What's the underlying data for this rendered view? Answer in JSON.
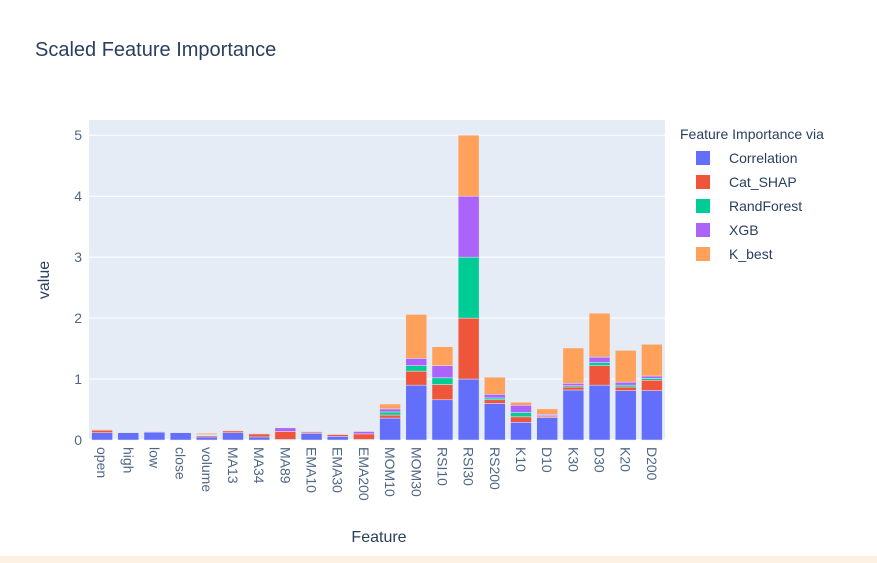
{
  "chart_data": {
    "type": "bar",
    "stacked": true,
    "title": "Scaled Feature Importance",
    "xlabel": "Feature",
    "ylabel": "value",
    "ylim": [
      0,
      5.25
    ],
    "yticks": [
      0,
      1,
      2,
      3,
      4,
      5
    ],
    "grid": true,
    "legend_title": "Feature Importance via",
    "legend_placement": "right",
    "categories": [
      "open",
      "high",
      "low",
      "close",
      "volume",
      "MA13",
      "MA34",
      "MA89",
      "EMA10",
      "EMA30",
      "EMA200",
      "MOM10",
      "MOM30",
      "RSI10",
      "RSI30",
      "RS200",
      "K10",
      "D10",
      "K30",
      "D30",
      "K20",
      "D200"
    ],
    "series": [
      {
        "name": "Correlation",
        "color": "#636efa",
        "values": [
          0.12,
          0.12,
          0.13,
          0.12,
          0.05,
          0.12,
          0.05,
          0.01,
          0.11,
          0.06,
          0.01,
          0.36,
          0.9,
          0.66,
          1.0,
          0.6,
          0.29,
          0.37,
          0.82,
          0.9,
          0.81,
          0.81
        ]
      },
      {
        "name": "Cat_SHAP",
        "color": "#ef553b",
        "values": [
          0.04,
          0.0,
          0.0,
          0.0,
          0.02,
          0.03,
          0.05,
          0.13,
          0.02,
          0.03,
          0.09,
          0.05,
          0.23,
          0.25,
          1.0,
          0.06,
          0.09,
          0.02,
          0.05,
          0.32,
          0.06,
          0.17
        ]
      },
      {
        "name": "RandForest",
        "color": "#00cc96",
        "values": [
          0.01,
          0.0,
          0.0,
          0.0,
          0.01,
          0.0,
          0.0,
          0.0,
          0.0,
          0.0,
          0.0,
          0.05,
          0.09,
          0.11,
          1.0,
          0.03,
          0.07,
          0.01,
          0.02,
          0.05,
          0.03,
          0.03
        ]
      },
      {
        "name": "XGB",
        "color": "#ab63fa",
        "values": [
          0.0,
          0.0,
          0.0,
          0.0,
          0.01,
          0.0,
          0.01,
          0.06,
          0.0,
          0.0,
          0.04,
          0.05,
          0.12,
          0.2,
          1.0,
          0.06,
          0.12,
          0.02,
          0.04,
          0.09,
          0.05,
          0.04
        ]
      },
      {
        "name": "K_best",
        "color": "#ffa15a",
        "values": [
          0.01,
          0.01,
          0.01,
          0.0,
          0.02,
          0.01,
          0.01,
          0.01,
          0.01,
          0.01,
          0.01,
          0.08,
          0.72,
          0.31,
          1.0,
          0.28,
          0.05,
          0.09,
          0.58,
          0.72,
          0.52,
          0.52
        ]
      }
    ]
  },
  "colors": {
    "plot_bg": "#e5ecf6",
    "grid": "#ffffff",
    "text": "#2a3f5f",
    "tick_text": "#506784"
  }
}
